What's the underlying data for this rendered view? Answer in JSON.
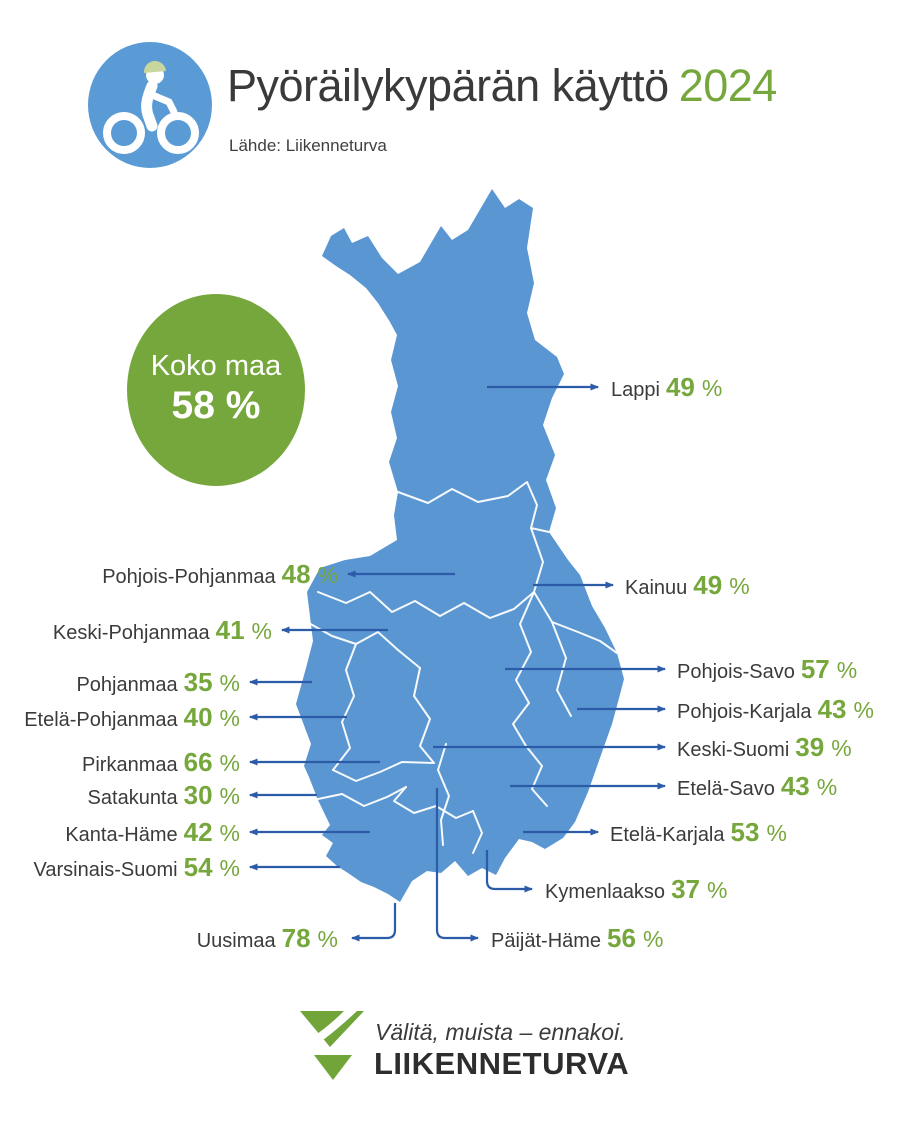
{
  "header": {
    "title": "Pyöräilykypärän käyttö",
    "year": "2024",
    "source": "Lähde: Liikenneturva"
  },
  "summary": {
    "label": "Koko maa",
    "value": "58",
    "unit": "%"
  },
  "percent_sign": "%",
  "regions": [
    {
      "id": "lappi",
      "name": "Lappi",
      "value": "49"
    },
    {
      "id": "pohjois-pohjanmaa",
      "name": "Pohjois-Pohjanmaa",
      "value": "48"
    },
    {
      "id": "kainuu",
      "name": "Kainuu",
      "value": "49"
    },
    {
      "id": "keski-pohjanmaa",
      "name": "Keski-Pohjanmaa",
      "value": "41"
    },
    {
      "id": "pohjanmaa",
      "name": "Pohjanmaa",
      "value": "35"
    },
    {
      "id": "etela-pohjanmaa",
      "name": "Etelä-Pohjanmaa",
      "value": "40"
    },
    {
      "id": "pohjois-savo",
      "name": "Pohjois-Savo",
      "value": "57"
    },
    {
      "id": "pohjois-karjala",
      "name": "Pohjois-Karjala",
      "value": "43"
    },
    {
      "id": "keski-suomi",
      "name": "Keski-Suomi",
      "value": "39"
    },
    {
      "id": "etela-savo",
      "name": "Etelä-Savo",
      "value": "43"
    },
    {
      "id": "pirkanmaa",
      "name": "Pirkanmaa",
      "value": "66"
    },
    {
      "id": "satakunta",
      "name": "Satakunta",
      "value": "30"
    },
    {
      "id": "kanta-hame",
      "name": "Kanta-Häme",
      "value": "42"
    },
    {
      "id": "etela-karjala",
      "name": "Etelä-Karjala",
      "value": "53"
    },
    {
      "id": "varsinais-suomi",
      "name": "Varsinais-Suomi",
      "value": "54"
    },
    {
      "id": "kymenlaakso",
      "name": "Kymenlaakso",
      "value": "37"
    },
    {
      "id": "uusimaa",
      "name": "Uusimaa",
      "value": "78"
    },
    {
      "id": "paijat-hame",
      "name": "Päijät-Häme",
      "value": "56"
    }
  ],
  "footer": {
    "slogan": "Välitä, muista – ennakoi.",
    "brand": "LIIKENNETURVA"
  },
  "colors": {
    "map_blue": "#5a96d2",
    "accent_green": "#76a73c",
    "arrow_blue": "#2c5ba7",
    "text_dark": "#3a3a3a",
    "helmet_green": "#c9d69e"
  },
  "chart_data": {
    "type": "table",
    "title": "Pyöräilykypärän käyttö 2024",
    "unit": "%",
    "overall": {
      "label": "Koko maa",
      "value": 58
    },
    "categories": [
      "Lappi",
      "Pohjois-Pohjanmaa",
      "Kainuu",
      "Keski-Pohjanmaa",
      "Pohjanmaa",
      "Etelä-Pohjanmaa",
      "Pohjois-Savo",
      "Pohjois-Karjala",
      "Keski-Suomi",
      "Etelä-Savo",
      "Pirkanmaa",
      "Satakunta",
      "Kanta-Häme",
      "Etelä-Karjala",
      "Varsinais-Suomi",
      "Kymenlaakso",
      "Uusimaa",
      "Päijät-Häme"
    ],
    "values": [
      49,
      48,
      49,
      41,
      35,
      40,
      57,
      43,
      39,
      43,
      66,
      30,
      42,
      53,
      54,
      37,
      78,
      56
    ]
  }
}
